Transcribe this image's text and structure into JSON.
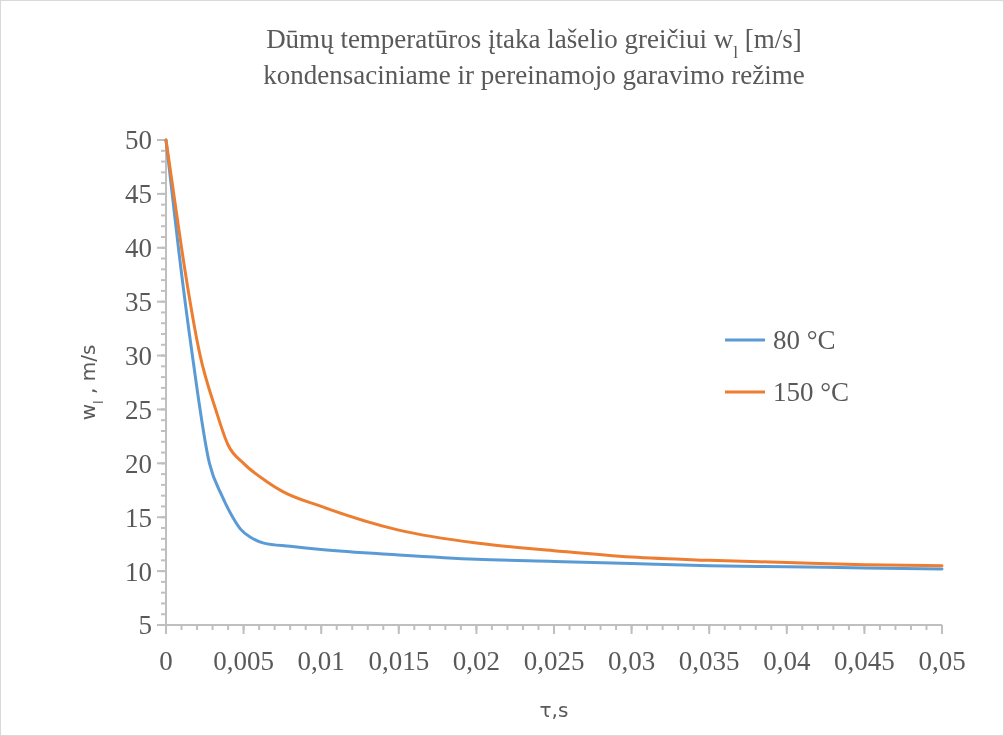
{
  "chart_data": {
    "type": "line",
    "title": "Dūmų temperatūros įtaka lašelio greičiui w$_{l}$ [m/s]\nkondensaciniame ir pereinamojo garavimo režime",
    "xlabel": "τ,s",
    "ylabel": "w$_{l}$ , m/s",
    "xlim": [
      0,
      0.05
    ],
    "xticks": [
      0,
      {
        "value": 0.005,
        "label": "0,005"
      },
      {
        "value": 0.01,
        "label": "0,01"
      },
      {
        "value": 0.015,
        "label": "0,015"
      },
      {
        "value": 0.02,
        "label": "0,02"
      },
      {
        "value": 0.025,
        "label": "0,025"
      },
      {
        "value": 0.03,
        "label": "0,03"
      },
      {
        "value": 0.035,
        "label": "0,035"
      },
      {
        "value": 0.04,
        "label": "0,04"
      },
      {
        "value": 0.045,
        "label": "0,045"
      },
      {
        "value": 0.05,
        "label": "0,05"
      }
    ],
    "ylim": [
      5,
      50
    ],
    "yticks": [
      5,
      10,
      15,
      20,
      25,
      30,
      35,
      40,
      45,
      50
    ],
    "grid": false,
    "legend": "right",
    "marker": "none",
    "line_style": "solid",
    "series": [
      {
        "name": "80 °C",
        "color": "#5b9bd5",
        "x": [
          0,
          0.0004,
          0.0008,
          0.0017,
          0.0028,
          0.0036,
          0.0043,
          0.0048,
          0.0055,
          0.0063,
          0.008,
          0.01,
          0.015,
          0.02,
          0.025,
          0.03,
          0.035,
          0.04,
          0.045,
          0.05
        ],
        "values": [
          50,
          45,
          40,
          30,
          20,
          17,
          15,
          13.9,
          13.1,
          12.6,
          12.3,
          12,
          11.5,
          11.1,
          10.9,
          10.7,
          10.5,
          10.4,
          10.3,
          10.2
        ]
      },
      {
        "name": "150 °C",
        "color": "#ed7d31",
        "x": [
          0,
          0.0005,
          0.001,
          0.0022,
          0.0032,
          0.004,
          0.005,
          0.0065,
          0.0075,
          0.01,
          0.015,
          0.02,
          0.025,
          0.03,
          0.035,
          0.04,
          0.045,
          0.05
        ],
        "values": [
          50,
          45,
          40,
          30,
          25,
          21.7,
          20,
          18.3,
          17.4,
          16,
          13.8,
          12.6,
          11.9,
          11.3,
          11,
          10.8,
          10.6,
          10.5
        ]
      }
    ]
  }
}
